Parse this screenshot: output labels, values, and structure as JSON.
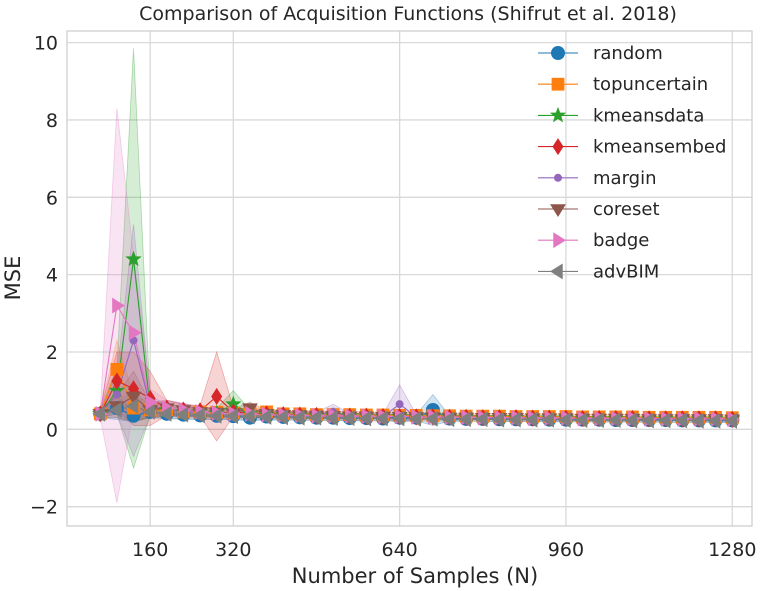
{
  "chart_data": {
    "type": "line",
    "title": "Comparison of Acquisition Functions (Shifrut et al. 2018)",
    "xlabel": "Number of Samples (N)",
    "ylabel": "MSE",
    "xlim": [
      0,
      1318
    ],
    "ylim": [
      -2.5,
      10.3
    ],
    "xticks": [
      160,
      320,
      640,
      960,
      1280
    ],
    "xtick_labels": [
      "160",
      "320",
      "640",
      "960",
      "1280"
    ],
    "yticks": [
      -2,
      0,
      2,
      4,
      6,
      8,
      10
    ],
    "ytick_labels": [
      "−2",
      "0",
      "2",
      "4",
      "6",
      "8",
      "10"
    ],
    "grid": true,
    "legend_position": "top-right",
    "x": [
      64,
      96,
      128,
      160,
      192,
      224,
      256,
      288,
      320,
      352,
      384,
      416,
      448,
      480,
      512,
      544,
      576,
      608,
      640,
      672,
      704,
      736,
      768,
      800,
      832,
      864,
      896,
      928,
      960,
      992,
      1024,
      1056,
      1088,
      1120,
      1152,
      1184,
      1216,
      1248,
      1280
    ],
    "series": [
      {
        "name": "random",
        "color": "#1f77b4",
        "marker": "circle",
        "values": [
          0.4,
          0.55,
          0.35,
          0.45,
          0.4,
          0.38,
          0.36,
          0.35,
          0.34,
          0.3,
          0.33,
          0.32,
          0.31,
          0.3,
          0.3,
          0.29,
          0.29,
          0.28,
          0.3,
          0.3,
          0.5,
          0.28,
          0.27,
          0.27,
          0.26,
          0.26,
          0.26,
          0.25,
          0.25,
          0.25,
          0.25,
          0.24,
          0.24,
          0.24,
          0.24,
          0.23,
          0.23,
          0.23,
          0.23
        ],
        "lower": [
          0.3,
          0.25,
          0.2,
          0.3,
          0.28,
          0.25,
          0.25,
          0.25,
          0.25,
          0.22,
          0.24,
          0.24,
          0.24,
          0.23,
          0.23,
          0.22,
          0.22,
          0.22,
          0.22,
          0.22,
          0.1,
          0.21,
          0.21,
          0.21,
          0.2,
          0.2,
          0.2,
          0.2,
          0.2,
          0.2,
          0.19,
          0.19,
          0.19,
          0.19,
          0.19,
          0.18,
          0.18,
          0.18,
          0.18
        ],
        "upper": [
          0.5,
          0.85,
          0.5,
          0.6,
          0.52,
          0.5,
          0.47,
          0.45,
          0.43,
          0.38,
          0.42,
          0.4,
          0.38,
          0.37,
          0.37,
          0.36,
          0.36,
          0.34,
          0.38,
          0.38,
          0.9,
          0.35,
          0.33,
          0.33,
          0.32,
          0.32,
          0.32,
          0.3,
          0.3,
          0.3,
          0.31,
          0.29,
          0.29,
          0.29,
          0.29,
          0.28,
          0.28,
          0.28,
          0.28
        ]
      },
      {
        "name": "topuncertain",
        "color": "#ff7f0e",
        "marker": "square",
        "values": [
          0.4,
          1.55,
          0.55,
          0.5,
          0.5,
          0.45,
          0.45,
          0.44,
          0.42,
          0.45,
          0.45,
          0.4,
          0.4,
          0.38,
          0.38,
          0.38,
          0.37,
          0.37,
          0.36,
          0.36,
          0.35,
          0.35,
          0.34,
          0.34,
          0.34,
          0.33,
          0.33,
          0.33,
          0.33,
          0.32,
          0.32,
          0.32,
          0.32,
          0.31,
          0.31,
          0.31,
          0.31,
          0.31,
          0.3
        ],
        "lower": [
          0.3,
          0.8,
          0.25,
          0.3,
          0.35,
          0.32,
          0.33,
          0.33,
          0.32,
          0.35,
          0.35,
          0.32,
          0.32,
          0.3,
          0.3,
          0.3,
          0.3,
          0.3,
          0.29,
          0.29,
          0.28,
          0.28,
          0.28,
          0.28,
          0.28,
          0.27,
          0.27,
          0.27,
          0.27,
          0.26,
          0.26,
          0.26,
          0.26,
          0.26,
          0.26,
          0.26,
          0.26,
          0.26,
          0.25
        ],
        "upper": [
          0.5,
          2.3,
          0.85,
          0.7,
          0.65,
          0.58,
          0.57,
          0.55,
          0.52,
          0.55,
          0.55,
          0.48,
          0.48,
          0.46,
          0.46,
          0.46,
          0.44,
          0.44,
          0.43,
          0.43,
          0.42,
          0.42,
          0.4,
          0.4,
          0.4,
          0.39,
          0.39,
          0.39,
          0.39,
          0.38,
          0.38,
          0.38,
          0.38,
          0.36,
          0.36,
          0.36,
          0.36,
          0.36,
          0.35
        ]
      },
      {
        "name": "kmeansdata",
        "color": "#2ca02c",
        "marker": "star",
        "values": [
          0.4,
          1.0,
          4.4,
          0.55,
          0.5,
          0.45,
          0.45,
          0.42,
          0.65,
          0.4,
          0.38,
          0.37,
          0.36,
          0.35,
          0.35,
          0.34,
          0.34,
          0.33,
          0.33,
          0.32,
          0.32,
          0.31,
          0.31,
          0.3,
          0.3,
          0.3,
          0.29,
          0.29,
          0.29,
          0.28,
          0.28,
          0.28,
          0.28,
          0.27,
          0.27,
          0.27,
          0.27,
          0.27,
          0.26
        ],
        "lower": [
          0.3,
          0.4,
          -1.0,
          0.35,
          0.35,
          0.32,
          0.33,
          0.3,
          0.3,
          0.3,
          0.29,
          0.29,
          0.28,
          0.28,
          0.28,
          0.27,
          0.27,
          0.27,
          0.27,
          0.26,
          0.26,
          0.25,
          0.25,
          0.25,
          0.25,
          0.25,
          0.24,
          0.24,
          0.24,
          0.23,
          0.23,
          0.23,
          0.23,
          0.23,
          0.23,
          0.23,
          0.23,
          0.23,
          0.22
        ],
        "upper": [
          0.5,
          1.6,
          9.85,
          0.75,
          0.65,
          0.58,
          0.57,
          0.54,
          1.0,
          0.5,
          0.47,
          0.45,
          0.44,
          0.42,
          0.42,
          0.41,
          0.41,
          0.39,
          0.39,
          0.38,
          0.38,
          0.37,
          0.37,
          0.35,
          0.35,
          0.35,
          0.34,
          0.34,
          0.34,
          0.33,
          0.33,
          0.33,
          0.33,
          0.31,
          0.31,
          0.31,
          0.31,
          0.31,
          0.3
        ]
      },
      {
        "name": "kmeansembed",
        "color": "#d62728",
        "marker": "diamond",
        "values": [
          0.4,
          1.25,
          1.05,
          0.8,
          0.55,
          0.5,
          0.48,
          0.85,
          0.45,
          0.42,
          0.4,
          0.38,
          0.37,
          0.36,
          0.35,
          0.34,
          0.34,
          0.33,
          0.33,
          0.32,
          0.32,
          0.31,
          0.31,
          0.3,
          0.3,
          0.3,
          0.29,
          0.29,
          0.29,
          0.28,
          0.28,
          0.28,
          0.28,
          0.27,
          0.27,
          0.27,
          0.27,
          0.27,
          0.26
        ],
        "lower": [
          0.3,
          0.5,
          0.1,
          0.1,
          0.35,
          0.35,
          0.35,
          -0.3,
          0.33,
          0.32,
          0.31,
          0.3,
          0.29,
          0.28,
          0.28,
          0.27,
          0.27,
          0.27,
          0.27,
          0.26,
          0.26,
          0.25,
          0.25,
          0.25,
          0.25,
          0.25,
          0.24,
          0.24,
          0.24,
          0.23,
          0.23,
          0.23,
          0.23,
          0.23,
          0.23,
          0.23,
          0.23,
          0.23,
          0.22
        ],
        "upper": [
          0.5,
          2.0,
          2.0,
          1.5,
          0.75,
          0.65,
          0.61,
          2.0,
          0.57,
          0.52,
          0.49,
          0.46,
          0.45,
          0.44,
          0.42,
          0.41,
          0.41,
          0.39,
          0.39,
          0.38,
          0.38,
          0.37,
          0.37,
          0.35,
          0.35,
          0.35,
          0.34,
          0.34,
          0.34,
          0.33,
          0.33,
          0.33,
          0.33,
          0.31,
          0.31,
          0.31,
          0.31,
          0.31,
          0.3
        ]
      },
      {
        "name": "margin",
        "color": "#9467bd",
        "marker": "dot",
        "values": [
          0.4,
          0.9,
          2.3,
          0.6,
          0.5,
          0.45,
          0.44,
          0.42,
          0.4,
          0.4,
          0.38,
          0.38,
          0.37,
          0.36,
          0.45,
          0.34,
          0.34,
          0.33,
          0.65,
          0.32,
          0.32,
          0.31,
          0.31,
          0.3,
          0.3,
          0.3,
          0.29,
          0.29,
          0.29,
          0.28,
          0.28,
          0.28,
          0.28,
          0.27,
          0.27,
          0.27,
          0.27,
          0.27,
          0.26
        ],
        "lower": [
          0.3,
          0.4,
          -0.7,
          0.35,
          0.35,
          0.32,
          0.33,
          0.3,
          0.3,
          0.3,
          0.29,
          0.29,
          0.28,
          0.28,
          0.25,
          0.27,
          0.27,
          0.27,
          0.15,
          0.26,
          0.26,
          0.25,
          0.25,
          0.25,
          0.25,
          0.25,
          0.24,
          0.24,
          0.24,
          0.23,
          0.23,
          0.23,
          0.23,
          0.23,
          0.23,
          0.23,
          0.23,
          0.23,
          0.22
        ],
        "upper": [
          0.5,
          1.4,
          5.3,
          0.85,
          0.65,
          0.58,
          0.55,
          0.54,
          0.5,
          0.5,
          0.47,
          0.47,
          0.46,
          0.44,
          0.65,
          0.41,
          0.41,
          0.39,
          1.15,
          0.38,
          0.38,
          0.37,
          0.37,
          0.35,
          0.35,
          0.35,
          0.34,
          0.34,
          0.34,
          0.33,
          0.33,
          0.33,
          0.33,
          0.31,
          0.31,
          0.31,
          0.31,
          0.31,
          0.3
        ]
      },
      {
        "name": "coreset",
        "color": "#8c564b",
        "marker": "triangle-down",
        "values": [
          0.4,
          0.6,
          0.85,
          0.5,
          0.55,
          0.5,
          0.45,
          0.44,
          0.42,
          0.55,
          0.4,
          0.38,
          0.37,
          0.36,
          0.35,
          0.34,
          0.34,
          0.33,
          0.33,
          0.32,
          0.32,
          0.31,
          0.31,
          0.3,
          0.3,
          0.3,
          0.29,
          0.29,
          0.29,
          0.28,
          0.28,
          0.28,
          0.28,
          0.27,
          0.27,
          0.27,
          0.27,
          0.27,
          0.26
        ],
        "lower": [
          0.3,
          0.3,
          0.2,
          0.3,
          0.35,
          0.35,
          0.33,
          0.33,
          0.32,
          0.4,
          0.31,
          0.3,
          0.29,
          0.28,
          0.28,
          0.27,
          0.27,
          0.27,
          0.27,
          0.26,
          0.26,
          0.25,
          0.25,
          0.25,
          0.25,
          0.25,
          0.24,
          0.24,
          0.24,
          0.23,
          0.23,
          0.23,
          0.23,
          0.23,
          0.23,
          0.23,
          0.23,
          0.23,
          0.22
        ],
        "upper": [
          0.5,
          0.9,
          1.5,
          0.7,
          0.75,
          0.65,
          0.57,
          0.55,
          0.52,
          0.7,
          0.49,
          0.46,
          0.45,
          0.44,
          0.42,
          0.41,
          0.41,
          0.39,
          0.39,
          0.38,
          0.38,
          0.37,
          0.37,
          0.35,
          0.35,
          0.35,
          0.34,
          0.34,
          0.34,
          0.33,
          0.33,
          0.33,
          0.33,
          0.31,
          0.31,
          0.31,
          0.31,
          0.31,
          0.3
        ]
      },
      {
        "name": "badge",
        "color": "#e377c2",
        "marker": "triangle-right",
        "values": [
          0.4,
          3.2,
          2.5,
          0.7,
          0.55,
          0.5,
          0.45,
          0.42,
          0.4,
          0.4,
          0.38,
          0.37,
          0.36,
          0.35,
          0.35,
          0.34,
          0.34,
          0.33,
          0.33,
          0.32,
          0.32,
          0.31,
          0.31,
          0.3,
          0.3,
          0.3,
          0.29,
          0.29,
          0.29,
          0.28,
          0.28,
          0.28,
          0.28,
          0.27,
          0.27,
          0.27,
          0.27,
          0.27,
          0.26
        ],
        "lower": [
          0.3,
          -1.9,
          0.5,
          0.35,
          0.35,
          0.32,
          0.33,
          0.3,
          0.3,
          0.3,
          0.29,
          0.29,
          0.28,
          0.28,
          0.28,
          0.27,
          0.27,
          0.27,
          0.27,
          0.26,
          0.26,
          0.25,
          0.25,
          0.25,
          0.25,
          0.25,
          0.24,
          0.24,
          0.24,
          0.23,
          0.23,
          0.23,
          0.23,
          0.23,
          0.23,
          0.23,
          0.23,
          0.23,
          0.22
        ],
        "upper": [
          0.5,
          8.3,
          4.5,
          1.05,
          0.75,
          0.68,
          0.57,
          0.54,
          0.5,
          0.5,
          0.47,
          0.45,
          0.44,
          0.42,
          0.42,
          0.41,
          0.41,
          0.39,
          0.39,
          0.38,
          0.38,
          0.37,
          0.37,
          0.35,
          0.35,
          0.35,
          0.34,
          0.34,
          0.34,
          0.33,
          0.33,
          0.33,
          0.33,
          0.31,
          0.31,
          0.31,
          0.31,
          0.31,
          0.3
        ]
      },
      {
        "name": "advBIM",
        "color": "#7f7f7f",
        "marker": "triangle-left",
        "values": [
          0.4,
          0.5,
          0.6,
          0.45,
          0.4,
          0.38,
          0.36,
          0.35,
          0.34,
          0.33,
          0.32,
          0.31,
          0.3,
          0.3,
          0.29,
          0.29,
          0.28,
          0.28,
          0.28,
          0.27,
          0.27,
          0.26,
          0.26,
          0.26,
          0.25,
          0.25,
          0.25,
          0.25,
          0.24,
          0.24,
          0.24,
          0.24,
          0.23,
          0.23,
          0.23,
          0.23,
          0.22,
          0.22,
          0.22
        ],
        "lower": [
          0.3,
          0.3,
          0.2,
          0.3,
          0.28,
          0.27,
          0.27,
          0.26,
          0.26,
          0.25,
          0.25,
          0.24,
          0.24,
          0.24,
          0.23,
          0.23,
          0.22,
          0.22,
          0.22,
          0.22,
          0.22,
          0.21,
          0.21,
          0.21,
          0.2,
          0.2,
          0.2,
          0.2,
          0.19,
          0.19,
          0.19,
          0.19,
          0.18,
          0.18,
          0.18,
          0.18,
          0.18,
          0.18,
          0.18
        ],
        "upper": [
          0.5,
          0.7,
          1.0,
          0.6,
          0.52,
          0.49,
          0.45,
          0.44,
          0.42,
          0.41,
          0.39,
          0.38,
          0.36,
          0.36,
          0.35,
          0.35,
          0.34,
          0.34,
          0.34,
          0.32,
          0.32,
          0.31,
          0.31,
          0.31,
          0.3,
          0.3,
          0.3,
          0.3,
          0.29,
          0.29,
          0.29,
          0.29,
          0.28,
          0.28,
          0.28,
          0.28,
          0.26,
          0.26,
          0.26
        ]
      }
    ]
  }
}
